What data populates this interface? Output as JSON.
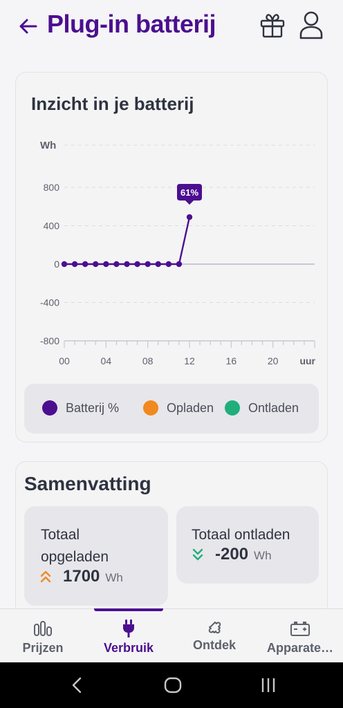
{
  "header": {
    "title": "Plug-in batterij",
    "back_icon": "arrow-left-icon",
    "gift_icon": "gift-icon",
    "user_icon": "user-icon"
  },
  "battery_card": {
    "title": "Inzicht in je batterij",
    "tooltip": "61%",
    "legend": [
      {
        "label": "Batterij %",
        "color": "#4b0f8f"
      },
      {
        "label": "Opladen",
        "color": "#f0891f"
      },
      {
        "label": "Ontladen",
        "color": "#1fae7c"
      }
    ]
  },
  "chart_data": {
    "type": "line",
    "ylabel": "Wh",
    "xlabel": "uur",
    "ylim": [
      -800,
      800
    ],
    "yticks": [
      "800",
      "400",
      "0",
      "-400",
      "-800"
    ],
    "xticks": [
      "00",
      "04",
      "08",
      "12",
      "16",
      "20"
    ],
    "xlim": [
      0,
      24
    ],
    "grid": true,
    "legend_position": "bottom",
    "series": [
      {
        "name": "Batterij %",
        "color": "#4b0f8f",
        "x": [
          0,
          1,
          2,
          3,
          4,
          5,
          6,
          7,
          8,
          9,
          10,
          11,
          12
        ],
        "y": [
          0,
          0,
          0,
          0,
          0,
          0,
          0,
          0,
          0,
          0,
          0,
          0,
          490
        ]
      }
    ],
    "annotation": {
      "x": 12,
      "y": 490,
      "text": "61%"
    }
  },
  "summary": {
    "title": "Samenvatting",
    "charged": {
      "label_line1": "Totaal",
      "label_line2": "opgeladen",
      "value": "1700",
      "unit": "Wh",
      "arrow_color": "#f0891f"
    },
    "discharged": {
      "label": "Totaal ontladen",
      "value": "-200",
      "unit": "Wh",
      "arrow_color": "#1fae7c"
    }
  },
  "nav": {
    "items": [
      {
        "label": "Prijzen",
        "icon": "bar-chart-icon",
        "active": false
      },
      {
        "label": "Verbruik",
        "icon": "plug-icon",
        "active": true
      },
      {
        "label": "Ontdek",
        "icon": "puzzle-icon",
        "active": false
      },
      {
        "label": "Apparate…",
        "icon": "battery-icon",
        "active": false
      }
    ]
  },
  "system": {
    "back": "system-back-icon",
    "home": "system-home-icon",
    "recents": "system-recents-icon"
  }
}
